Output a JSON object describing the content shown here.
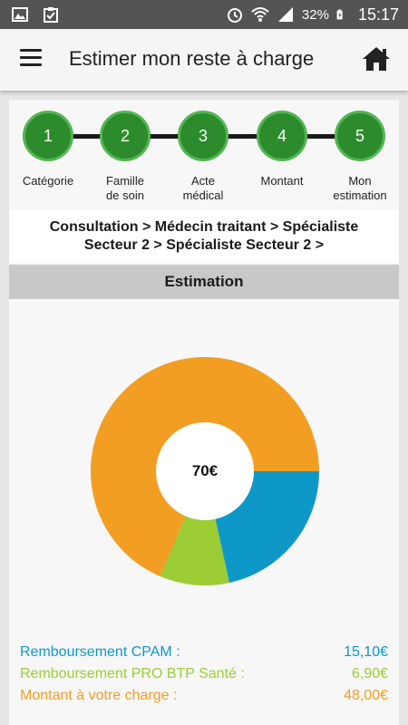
{
  "status_bar": {
    "battery": "32%",
    "time": "15:17"
  },
  "header": {
    "title": "Estimer mon reste à charge"
  },
  "steps": [
    {
      "number": "1",
      "label_lines": [
        "Catégorie"
      ]
    },
    {
      "number": "2",
      "label_lines": [
        "Famille",
        "de soin"
      ]
    },
    {
      "number": "3",
      "label_lines": [
        "Acte",
        "médical"
      ]
    },
    {
      "number": "4",
      "label_lines": [
        "Montant"
      ]
    },
    {
      "number": "5",
      "label_lines": [
        "Mon",
        "estimation"
      ]
    }
  ],
  "breadcrumb": {
    "line1": "Consultation > Médecin traitant > Spécialiste",
    "line2": "Secteur 2 > Spécialiste Secteur 2 >"
  },
  "section": {
    "title": "Estimation"
  },
  "chart_data": {
    "type": "pie",
    "center_label": "70€",
    "slices": [
      {
        "label": "Remboursement CPAM :",
        "value": 15.1,
        "display": "15,10€",
        "color": "#0e98c8"
      },
      {
        "label": "Remboursement PRO BTP Santé :",
        "value": 6.9,
        "display": "6,90€",
        "color": "#9ccc34"
      },
      {
        "label": "Montant à votre charge :",
        "value": 48.0,
        "display": "48,00€",
        "color": "#f29e23"
      }
    ]
  }
}
